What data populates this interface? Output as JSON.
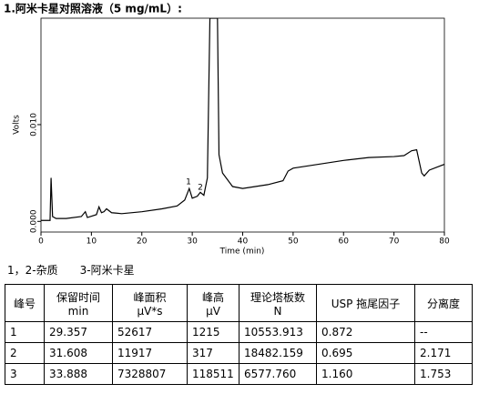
{
  "chart_data": {
    "type": "line",
    "title": "1.阿米卡星对照溶液（5 mg/mL）:",
    "x_label": "Time (min)",
    "y_label": "Volts",
    "x": [
      0,
      1.8,
      2.0,
      2.3,
      3,
      5,
      8,
      8.8,
      9.2,
      11,
      11.5,
      12,
      12.5,
      13,
      14,
      16,
      20,
      24,
      27,
      28.5,
      29.4,
      30,
      31,
      31.6,
      32.3,
      33,
      33.5,
      35,
      35.3,
      36,
      38,
      40,
      45,
      48,
      49,
      50,
      55,
      60,
      65,
      70,
      72,
      73.5,
      74.5,
      75.5,
      76,
      77,
      79,
      80
    ],
    "series": [
      {
        "color": "#000000",
        "values": [
          0.0001,
          0.0001,
          0.0045,
          0.0005,
          0.0003,
          0.0003,
          0.0005,
          0.001,
          0.0004,
          0.0007,
          0.0015,
          0.0009,
          0.001,
          0.0013,
          0.0009,
          0.0008,
          0.001,
          0.0013,
          0.0016,
          0.0022,
          0.0034,
          0.0024,
          0.0026,
          0.003,
          0.0027,
          0.0045,
          0.021,
          0.021,
          0.0069,
          0.005,
          0.0036,
          0.0034,
          0.0038,
          0.0042,
          0.0052,
          0.0055,
          0.0059,
          0.0063,
          0.0066,
          0.0067,
          0.0068,
          0.0073,
          0.0074,
          0.005,
          0.0047,
          0.0053,
          0.0057,
          0.0059
        ]
      }
    ],
    "xlim": [
      0,
      80
    ],
    "xticks": [
      0,
      10,
      20,
      30,
      40,
      50,
      60,
      70,
      80
    ],
    "ylim": [
      -0.0011,
      0.021
    ],
    "yticks": [
      {
        "value": 0,
        "label": "0.000"
      },
      {
        "value": 0.01,
        "label": "0.010"
      }
    ],
    "annotations": [
      "1",
      "2"
    ]
  },
  "legend_note": "1，2-杂质　　3-阿米卡星",
  "table": {
    "header": [
      [
        "峰号"
      ],
      [
        "保留时间",
        "min"
      ],
      [
        "峰面积",
        "μV*s"
      ],
      [
        "峰高",
        "μV"
      ],
      [
        "理论塔板数",
        "N"
      ],
      [
        "USP 拖尾因子"
      ],
      [
        "分离度"
      ]
    ],
    "rows": [
      [
        "1",
        "29.357",
        "52617",
        "1215",
        "10553.913",
        "0.872",
        "--"
      ],
      [
        "2",
        "31.608",
        "11917",
        "317",
        "18482.159",
        "0.695",
        "2.171"
      ],
      [
        "3",
        "33.888",
        "7328807",
        "118511",
        "6577.760",
        "1.160",
        "1.753"
      ]
    ]
  }
}
